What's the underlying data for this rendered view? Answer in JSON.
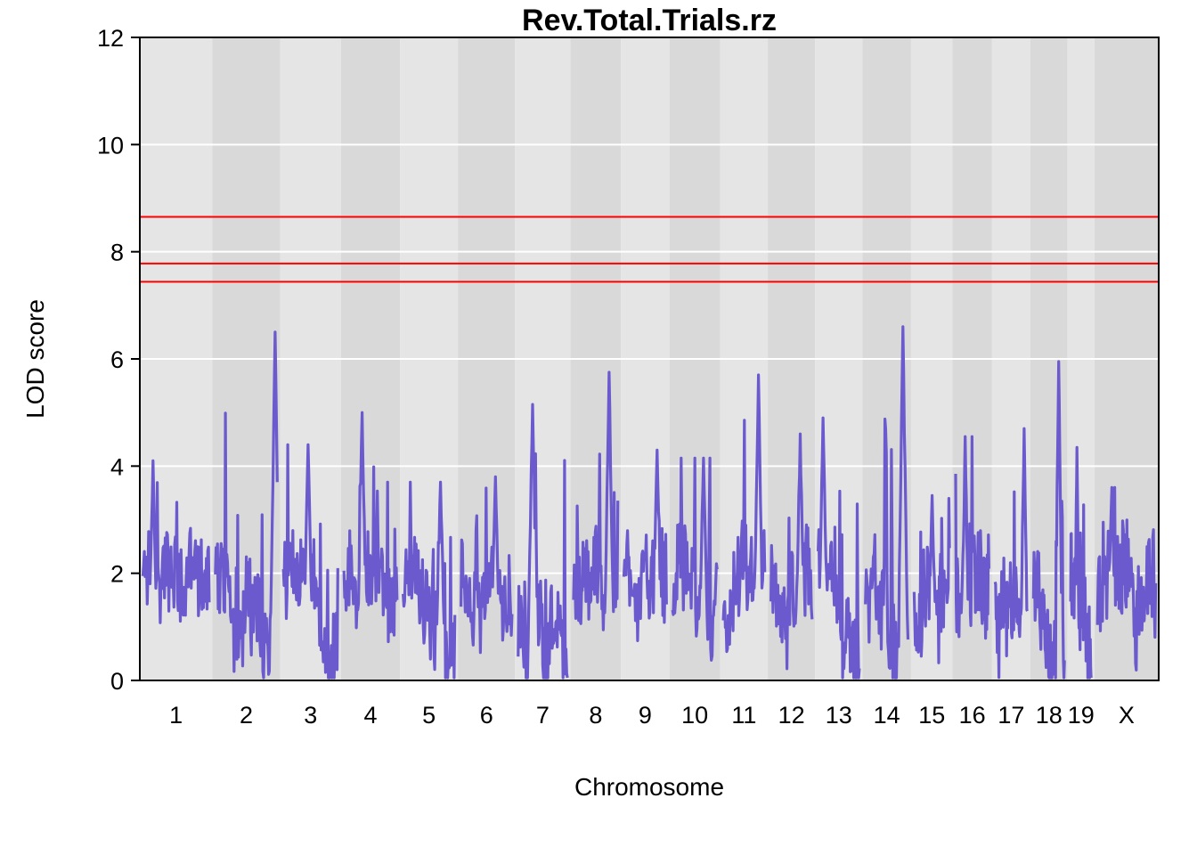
{
  "chart_data": {
    "type": "line",
    "title": "Rev.Total.Trials.rz",
    "xlabel": "Chromosome",
    "ylabel": "LOD score",
    "ylim": [
      0,
      12
    ],
    "y_ticks": [
      0,
      2,
      4,
      6,
      8,
      10,
      12
    ],
    "grid": true,
    "line_color": "#6a5acd",
    "threshold_color": "#ff0000",
    "band_colors": [
      "#e5e5e5",
      "#d9d9d9"
    ],
    "thresholds": [
      8.65,
      7.78,
      7.44
    ],
    "chromosomes": [
      {
        "name": "1",
        "length": 195,
        "peak": 4.1,
        "peak_pos": 0.15
      },
      {
        "name": "2",
        "length": 182,
        "peak": 6.5,
        "peak_pos": 0.96
      },
      {
        "name": "3",
        "length": 160,
        "peak": 4.4,
        "peak_pos": 0.45
      },
      {
        "name": "4",
        "length": 156,
        "peak": 5.0,
        "peak_pos": 0.34
      },
      {
        "name": "5",
        "length": 152,
        "peak": 3.7,
        "peak_pos": 0.72
      },
      {
        "name": "6",
        "length": 150,
        "peak": 3.8,
        "peak_pos": 0.68
      },
      {
        "name": "7",
        "length": 145,
        "peak": 5.15,
        "peak_pos": 0.29
      },
      {
        "name": "8",
        "length": 130,
        "peak": 5.75,
        "peak_pos": 0.8
      },
      {
        "name": "9",
        "length": 125,
        "peak": 4.3,
        "peak_pos": 0.78
      },
      {
        "name": "10",
        "length": 131,
        "peak": 4.15,
        "peak_pos": 0.7
      },
      {
        "name": "11",
        "length": 122,
        "peak": 5.7,
        "peak_pos": 0.85
      },
      {
        "name": "12",
        "length": 121,
        "peak": 4.6,
        "peak_pos": 0.72
      },
      {
        "name": "13",
        "length": 121,
        "peak": 4.9,
        "peak_pos": 0.12
      },
      {
        "name": "14",
        "length": 125,
        "peak": 6.6,
        "peak_pos": 0.88
      },
      {
        "name": "15",
        "length": 104,
        "peak": 3.45,
        "peak_pos": 0.5
      },
      {
        "name": "16",
        "length": 98,
        "peak": 4.55,
        "peak_pos": 0.28
      },
      {
        "name": "17",
        "length": 95,
        "peak": 4.7,
        "peak_pos": 0.9
      },
      {
        "name": "18",
        "length": 91,
        "peak": 5.95,
        "peak_pos": 0.82
      },
      {
        "name": "19",
        "length": 61,
        "peak": 4.35,
        "peak_pos": 0.3
      },
      {
        "name": "X",
        "length": 171,
        "peak": 3.6,
        "peak_pos": 0.25
      }
    ]
  }
}
